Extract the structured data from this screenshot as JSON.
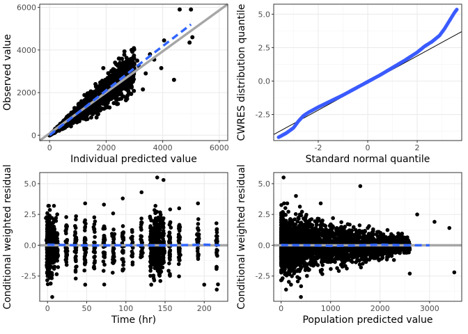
{
  "colors": {
    "panel_border": "#333333",
    "grid_major": "#ebebeb",
    "grid_minor": "#f5f5f5",
    "points": "#000000",
    "qq_points": "#3a5bff",
    "smooth": "#3366ff",
    "reference": "#a6a6a6",
    "qq_line": "#000000"
  },
  "chart_data": [
    {
      "type": "scatter",
      "panel": "top-left",
      "title": "",
      "xlabel": "Individual predicted value",
      "ylabel": "Observed value",
      "xlim": [
        -350,
        6300
      ],
      "ylim": [
        -250,
        6150
      ],
      "xticks": [
        0,
        2000,
        4000,
        6000
      ],
      "xtick_labels": [
        "0",
        "2000",
        "4000",
        "6000"
      ],
      "yticks": [
        0,
        2000,
        4000,
        6000
      ],
      "ytick_labels": [
        "0",
        "2000",
        "4000",
        "6000"
      ],
      "grid": true,
      "reference_line": {
        "type": "identity",
        "from": [
          -350,
          -350
        ],
        "to": [
          6300,
          6300
        ]
      },
      "smooth_line": {
        "x": [
          0,
          1000,
          2000,
          3000,
          4000,
          5000
        ],
        "y": [
          0,
          1050,
          2100,
          3150,
          4180,
          5200
        ]
      },
      "points": [
        [
          4600,
          5900
        ],
        [
          5000,
          5900
        ],
        [
          5050,
          4600
        ],
        [
          4950,
          4350
        ],
        [
          4050,
          4450
        ],
        [
          3100,
          3500
        ],
        [
          3550,
          3800
        ],
        [
          2900,
          4000
        ],
        [
          3400,
          2900
        ],
        [
          2600,
          3300
        ],
        [
          4400,
          2600
        ],
        [
          3700,
          3550
        ],
        [
          2250,
          3100
        ],
        [
          2450,
          3600
        ],
        [
          1900,
          3150
        ],
        [
          3150,
          3250
        ],
        [
          3950,
          3150
        ],
        [
          3300,
          2150
        ],
        [
          2500,
          2050
        ],
        [
          2800,
          2900
        ]
      ],
      "cloud": {
        "x_max": 3000,
        "slope": 1.03,
        "spread": 0.28,
        "count": 2400
      }
    },
    {
      "type": "scatter",
      "panel": "top-right",
      "title": "",
      "xlabel": "Standard normal quantile",
      "ylabel": "CWRES distribution quantile",
      "xlim": [
        -3.8,
        3.8
      ],
      "ylim": [
        -4.45,
        5.75
      ],
      "xticks": [
        -2,
        0,
        2
      ],
      "xtick_labels": [
        "-2",
        "0",
        "2"
      ],
      "yticks": [
        -2.5,
        0,
        2.5,
        5
      ],
      "ytick_labels": [
        "-2.5",
        "0.0",
        "2.5",
        "5.0"
      ],
      "grid": true,
      "qq_line": {
        "from": [
          -3.8,
          -4.0
        ],
        "to": [
          3.8,
          3.7
        ]
      },
      "qq_curve": {
        "x": [
          -3.6,
          -3.3,
          -3.0,
          -2.8,
          -2.6,
          -2.4,
          -2.2,
          -2.0,
          -1.5,
          -1.0,
          -0.5,
          0,
          0.5,
          1.0,
          1.5,
          2.0,
          2.3,
          2.6,
          2.9,
          3.1,
          3.3,
          3.5,
          3.6
        ],
        "y": [
          -4.2,
          -3.9,
          -3.5,
          -3.0,
          -2.6,
          -2.35,
          -2.15,
          -1.95,
          -1.5,
          -1.05,
          -0.55,
          -0.05,
          0.45,
          1.0,
          1.55,
          2.15,
          2.6,
          2.95,
          3.4,
          3.9,
          4.5,
          5.1,
          5.35
        ]
      }
    },
    {
      "type": "scatter",
      "panel": "bottom-left",
      "title": "",
      "xlabel": "Time (hr)",
      "ylabel": "Conditional weighted residual",
      "xlim": [
        -10,
        230
      ],
      "ylim": [
        -4.55,
        5.9
      ],
      "xticks": [
        0,
        50,
        100,
        150,
        200
      ],
      "xtick_labels": [
        "0",
        "50",
        "100",
        "150",
        "200"
      ],
      "yticks": [
        -2.5,
        0,
        2.5,
        5
      ],
      "ytick_labels": [
        "-2.5",
        "0.0",
        "2.5",
        "5.0"
      ],
      "grid": true,
      "reference_line": {
        "type": "hline",
        "y": 0
      },
      "smooth_line": {
        "x": [
          0,
          50,
          100,
          150,
          200,
          220
        ],
        "y": [
          0.05,
          -0.02,
          0.0,
          -0.02,
          0.05,
          0.0
        ]
      },
      "time_columns": [
        0,
        1,
        2,
        3,
        4,
        6,
        8,
        12,
        24,
        36,
        48,
        60,
        72,
        84,
        96,
        108,
        120,
        132,
        136,
        138,
        140,
        142,
        144,
        148,
        156,
        168,
        192,
        216
      ],
      "column_counts": [
        120,
        90,
        80,
        70,
        60,
        50,
        50,
        40,
        40,
        40,
        40,
        30,
        40,
        30,
        30,
        20,
        30,
        60,
        80,
        80,
        80,
        60,
        60,
        40,
        40,
        40,
        30,
        25
      ],
      "points": [
        [
          1,
          3.2
        ],
        [
          6,
          -4.2
        ],
        [
          4,
          -3.1
        ],
        [
          48,
          3.4
        ],
        [
          72,
          3.3
        ],
        [
          96,
          3.8
        ],
        [
          120,
          4.3
        ],
        [
          140,
          5.5
        ],
        [
          148,
          5.3
        ],
        [
          168,
          3.0
        ],
        [
          192,
          3.4
        ],
        [
          200,
          -3.2
        ],
        [
          216,
          -3.6
        ],
        [
          144,
          -2.9
        ],
        [
          36,
          -2.7
        ]
      ]
    },
    {
      "type": "scatter",
      "panel": "bottom-right",
      "title": "",
      "xlabel": "Population predicted value",
      "ylabel": "Conditional weighted residual",
      "xlim": [
        -150,
        3650
      ],
      "ylim": [
        -4.55,
        5.9
      ],
      "xticks": [
        0,
        1000,
        2000,
        3000
      ],
      "xtick_labels": [
        "0",
        "1000",
        "2000",
        "3000"
      ],
      "yticks": [
        -2.5,
        0,
        2.5,
        5
      ],
      "ytick_labels": [
        "-2.5",
        "0.0",
        "2.5",
        "5.0"
      ],
      "grid": true,
      "reference_line": {
        "type": "hline",
        "y": 0
      },
      "smooth_line": {
        "x": [
          0,
          500,
          1000,
          1500,
          2000,
          2500,
          3000
        ],
        "y": [
          0.02,
          0.0,
          -0.05,
          -0.02,
          0.05,
          0.0,
          0.0
        ]
      },
      "points": [
        [
          50,
          5.5
        ],
        [
          1600,
          4.8
        ],
        [
          400,
          -4.2
        ],
        [
          100,
          -3.6
        ],
        [
          3500,
          -2.2
        ],
        [
          3100,
          1.9
        ],
        [
          3400,
          1.4
        ],
        [
          2750,
          2.5
        ],
        [
          2600,
          -2.3
        ],
        [
          300,
          4.0
        ],
        [
          200,
          -3.2
        ],
        [
          800,
          3.4
        ]
      ],
      "cloud": {
        "x_max": 2600,
        "count": 2800
      }
    }
  ]
}
